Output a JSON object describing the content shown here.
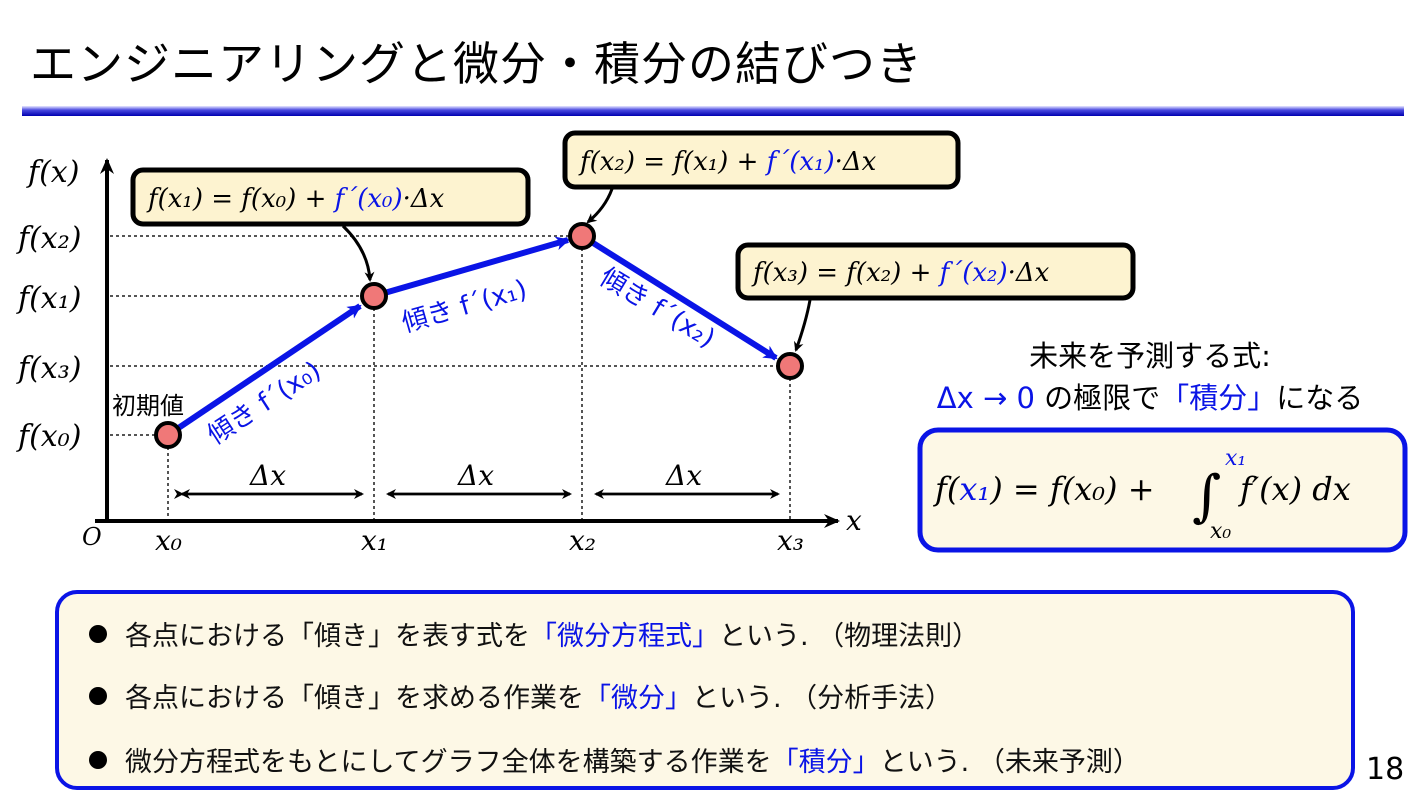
{
  "title": "エンジニアリングと微分・積分の結びつき",
  "page_number": "18",
  "colors": {
    "accent": "#0a14e6",
    "callout_fill": "#fdf3d0",
    "point_fill": "#f07878",
    "box_fill": "#fdf8e6"
  },
  "diagram": {
    "y_axis_label": "f(x)",
    "x_axis_label": "x",
    "origin_label": "O",
    "y_ticks": [
      "f(x₂)",
      "f(x₁)",
      "f(x₃)",
      "f(x₀)"
    ],
    "x_ticks": [
      "x₀",
      "x₁",
      "x₂",
      "x₃"
    ],
    "initial_value_label": "初期値",
    "delta_labels": [
      "Δx",
      "Δx",
      "Δx"
    ],
    "slopes": [
      [
        {
          "t": "傾き ",
          "c": "blue"
        },
        {
          "t": "f´(x₀)",
          "c": "blue"
        }
      ],
      [
        {
          "t": "傾き ",
          "c": "blue"
        },
        {
          "t": "f´(x₁)",
          "c": "blue"
        }
      ],
      [
        {
          "t": "傾き ",
          "c": "blue"
        },
        {
          "t": "f´(x₂)",
          "c": "blue"
        }
      ]
    ],
    "callouts": [
      [
        {
          "t": "f(x₁) = f(x₀) + ",
          "c": "black"
        },
        {
          "t": "f´(x₀)",
          "c": "blue"
        },
        {
          "t": "·Δx",
          "c": "black"
        }
      ],
      [
        {
          "t": "f(x₂) = f(x₁) + ",
          "c": "black"
        },
        {
          "t": "f´(x₁)",
          "c": "blue"
        },
        {
          "t": "·Δx",
          "c": "black"
        }
      ],
      [
        {
          "t": "f(x₃) = f(x₂) + ",
          "c": "black"
        },
        {
          "t": "f´(x₂)",
          "c": "blue"
        },
        {
          "t": "·Δx",
          "c": "black"
        }
      ]
    ]
  },
  "prediction": {
    "line1": "未来を予測する式:",
    "line2": [
      {
        "t": "Δx → 0",
        "c": "blue"
      },
      {
        "t": " の極限で",
        "c": "black"
      },
      {
        "t": "「積分」",
        "c": "blue"
      },
      {
        "t": "になる",
        "c": "black"
      }
    ],
    "formula": {
      "lhs_f": "f(",
      "lhs_var": "x₁",
      "rhs": ") = f(x₀) + ",
      "integral": "∫",
      "upper": "x₁",
      "lower": "x₀",
      "integrand": "f′(x) dx"
    }
  },
  "bullets": [
    [
      {
        "t": "各点における「傾き」を表す式を",
        "c": "black"
      },
      {
        "t": "「微分方程式」",
        "c": "blue"
      },
      {
        "t": "という. （物理法則）",
        "c": "black"
      }
    ],
    [
      {
        "t": "各点における「傾き」を求める作業を",
        "c": "black"
      },
      {
        "t": "「微分」",
        "c": "blue"
      },
      {
        "t": "という. （分析手法）",
        "c": "black"
      }
    ],
    [
      {
        "t": "微分方程式をもとにしてグラフ全体を構築する作業を",
        "c": "black"
      },
      {
        "t": "「積分」",
        "c": "blue"
      },
      {
        "t": "という. （未来予測）",
        "c": "black"
      }
    ]
  ]
}
